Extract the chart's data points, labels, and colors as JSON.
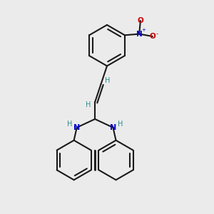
{
  "bg_color": "#ebebeb",
  "bond_color": "#1a1a1a",
  "N_color": "#0000cc",
  "O_color": "#cc0000",
  "H_color": "#2e8b8b",
  "lw": 1.5,
  "fig_size": [
    3.0,
    3.0
  ],
  "dpi": 100,
  "xlim": [
    -2.5,
    3.5
  ],
  "ylim": [
    -4.5,
    4.2
  ]
}
